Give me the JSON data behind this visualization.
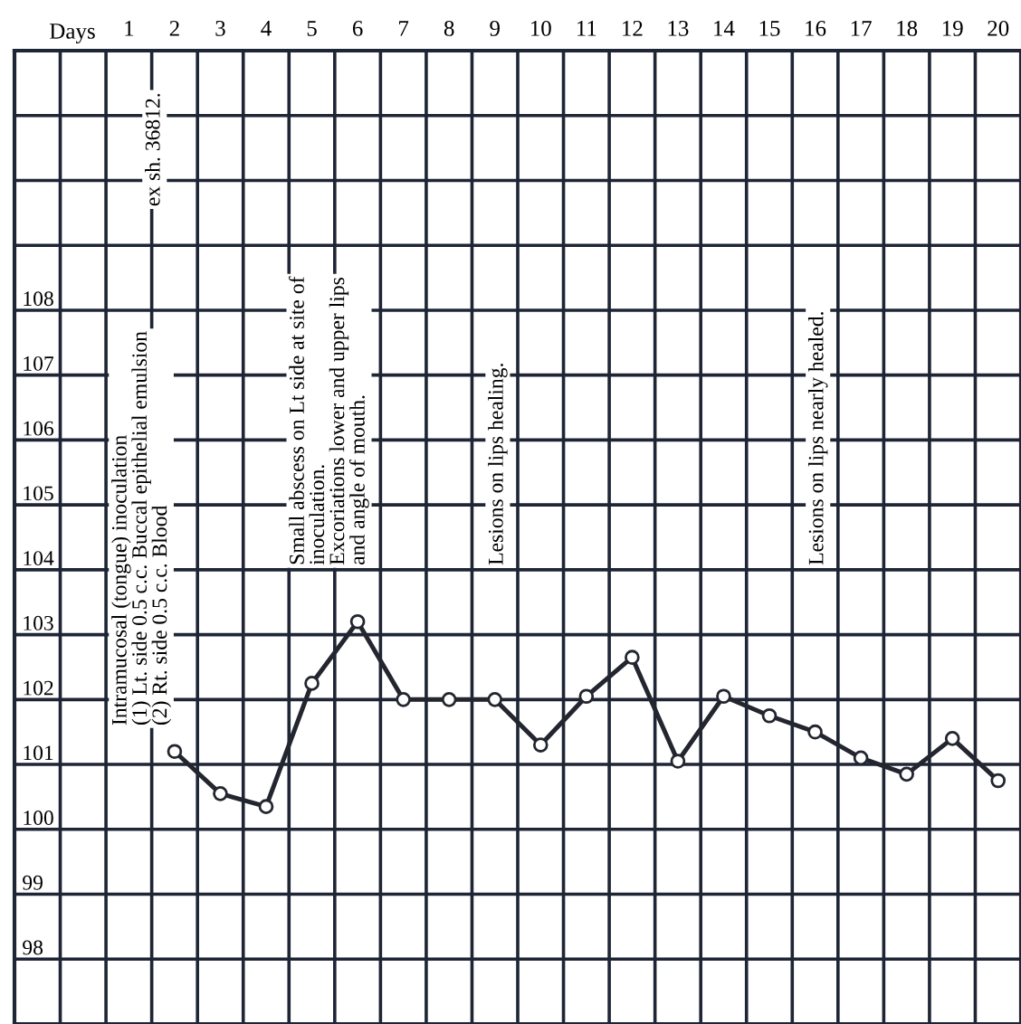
{
  "chart_data": {
    "type": "line",
    "xlabel": "Days",
    "x": [
      2,
      3,
      4,
      5,
      6,
      7,
      8,
      9,
      10,
      11,
      12,
      13,
      14,
      15,
      16,
      17,
      18,
      19,
      20
    ],
    "series": [
      {
        "color": "#23262f",
        "values": [
          101.2,
          100.55,
          100.35,
          102.25,
          103.2,
          102.0,
          102.0,
          102.0,
          101.3,
          102.05,
          102.65,
          101.05,
          102.05,
          101.75,
          101.5,
          101.1,
          100.85,
          101.4,
          100.75
        ]
      }
    ],
    "xlim": [
      -1.5,
      20.5
    ],
    "xticks": [
      1,
      2,
      3,
      4,
      5,
      6,
      7,
      8,
      9,
      10,
      11,
      12,
      13,
      14,
      15,
      16,
      17,
      18,
      19,
      20
    ],
    "ylim": [
      97,
      112
    ],
    "yticks": [
      98,
      99,
      100,
      101,
      102,
      103,
      104,
      105,
      106,
      107,
      108,
      {
        "value": 109,
        "label": null
      },
      {
        "value": 110,
        "label": null
      },
      {
        "value": 111,
        "label": null
      }
    ],
    "grid": true,
    "marker": "circle",
    "line_style": "solid",
    "legend": false,
    "annotations": [
      "Intramucosal (tongue) inoculation\n(1) Lt. side 0.5 c.c. Buccal epithelial emulsion\n(2) Rt. side 0.5 c.c. Blood",
      "ex sh. 36812.",
      "Small abscess on Lt side at site of\ninoculation.\nExcoriations lower and upper lips\nand angle of mouth.",
      "Lesions on lips healing.",
      "Lesions on lips nearly healed."
    ]
  }
}
